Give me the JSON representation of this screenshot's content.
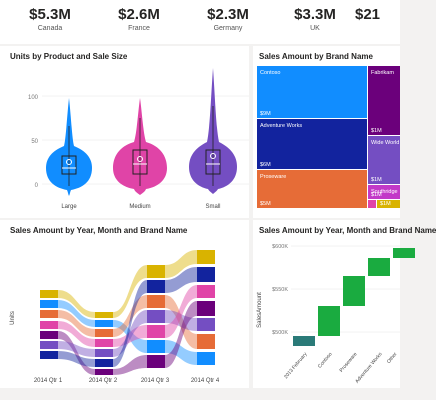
{
  "kpis": [
    {
      "value": "$5.3M",
      "label": "Canada"
    },
    {
      "value": "$2.6M",
      "label": "France"
    },
    {
      "value": "$2.3M",
      "label": "Germany"
    },
    {
      "value": "$3.3M",
      "label": "UK"
    },
    {
      "value": "$21",
      "label": ""
    }
  ],
  "violin": {
    "title": "Units by Product and Sale Size",
    "yticks": [
      "100",
      "50",
      "0"
    ],
    "categories": [
      "Large",
      "Medium",
      "Small"
    ],
    "colors": [
      "#118dff",
      "#e044a7",
      "#744ec2"
    ]
  },
  "treemap": {
    "title": "Sales Amount by Brand Name",
    "tiles": [
      {
        "name": "Contoso",
        "value": "$9M",
        "color": "#118dff"
      },
      {
        "name": "Adventure Works",
        "value": "$6M",
        "color": "#12239e"
      },
      {
        "name": "Proseware",
        "value": "$5M",
        "color": "#e66c37"
      },
      {
        "name": "Fabrikam",
        "value": "$1M",
        "color": "#6b007b"
      },
      {
        "name": "Wide World",
        "value": "$1M",
        "color": "#744ec2"
      },
      {
        "name": "Southridge",
        "value": "$1M",
        "color": "#c239c8"
      },
      {
        "name": "",
        "value": "",
        "color": "#e044a7"
      },
      {
        "name": "",
        "value": "$1M",
        "color": "#d9b300"
      }
    ]
  },
  "ribbon": {
    "title": "Sales Amount by Year, Month and Brand Name",
    "ylabel": "Units",
    "quarters": [
      "2014 Qtr 1",
      "2014 Qtr 2",
      "2014 Qtr 3",
      "2014 Qtr 4"
    ]
  },
  "waterfall": {
    "title": "Sales Amount by Year, Month and Brand Name",
    "ylabel": "SalesAmount",
    "yticks": [
      "$600K",
      "$550K",
      "$500K"
    ],
    "categories": [
      "2013 February",
      "Contoso",
      "Proseware",
      "Adventure Works",
      "Other"
    ],
    "colors": {
      "base": "#2a7a78",
      "increase": "#1aab40"
    }
  }
}
